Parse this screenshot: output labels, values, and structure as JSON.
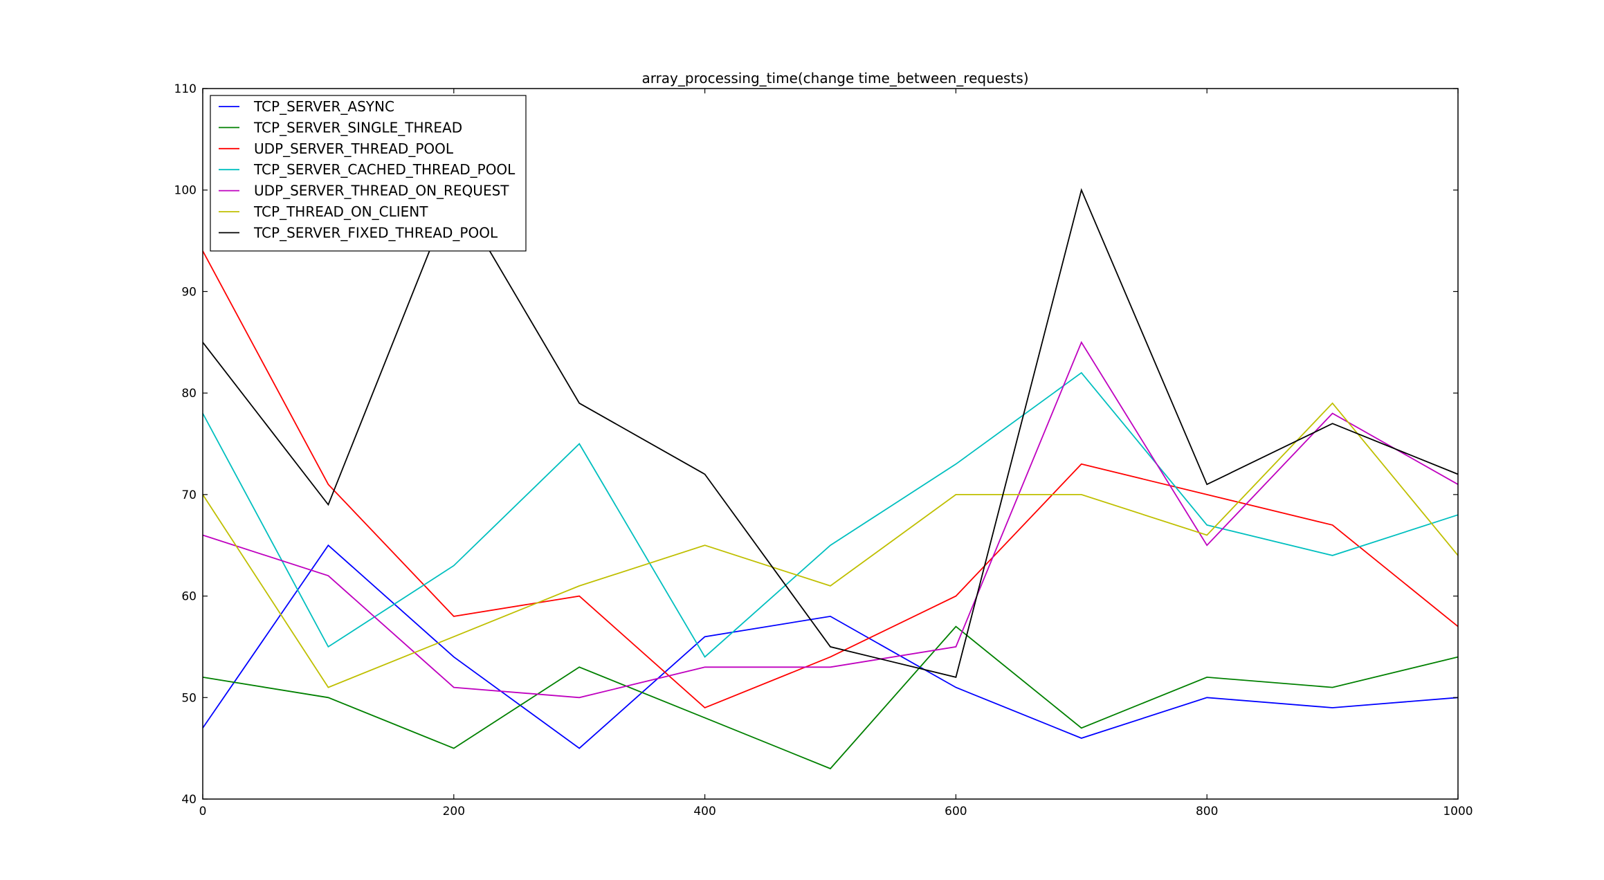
{
  "chart_data": {
    "type": "line",
    "title": "array_processing_time(change  time_between_requests)",
    "xlabel": "",
    "ylabel": "",
    "xlim": [
      0,
      1000
    ],
    "ylim": [
      40,
      110
    ],
    "x_ticks": [
      "0",
      "200",
      "400",
      "600",
      "800",
      "1000"
    ],
    "y_ticks": [
      "40",
      "50",
      "60",
      "70",
      "80",
      "90",
      "100",
      "110"
    ],
    "grid": false,
    "legend_position": "top-left",
    "x": [
      0,
      100,
      200,
      300,
      400,
      500,
      600,
      700,
      800,
      900,
      1000
    ],
    "series": [
      {
        "name": "TCP_SERVER_ASYNC",
        "color": "#0000ff",
        "values": [
          47,
          65,
          54,
          45,
          56,
          58,
          51,
          46,
          50,
          49,
          50
        ]
      },
      {
        "name": "TCP_SERVER_SINGLE_THREAD",
        "color": "#008000",
        "values": [
          52,
          50,
          45,
          53,
          48,
          43,
          57,
          47,
          52,
          51,
          54
        ]
      },
      {
        "name": "UDP_SERVER_THREAD_POOL",
        "color": "#ff0000",
        "values": [
          94,
          71,
          58,
          60,
          49,
          54,
          60,
          73,
          70,
          67,
          57
        ]
      },
      {
        "name": "TCP_SERVER_CACHED_THREAD_POOL",
        "color": "#00bfbf",
        "values": [
          78,
          55,
          63,
          75,
          54,
          65,
          73,
          82,
          67,
          64,
          68
        ]
      },
      {
        "name": "UDP_SERVER_THREAD_ON_REQUEST",
        "color": "#bf00bf",
        "values": [
          66,
          62,
          51,
          50,
          53,
          53,
          55,
          85,
          65,
          78,
          71
        ]
      },
      {
        "name": "TCP_THREAD_ON_CLIENT",
        "color": "#bfbf00",
        "values": [
          70,
          51,
          56,
          61,
          65,
          61,
          70,
          70,
          66,
          79,
          64
        ]
      },
      {
        "name": "TCP_SERVER_FIXED_THREAD_POOL",
        "color": "#000000",
        "values": [
          85,
          69,
          100,
          79,
          72,
          55,
          52,
          100,
          71,
          77,
          72
        ]
      }
    ]
  }
}
